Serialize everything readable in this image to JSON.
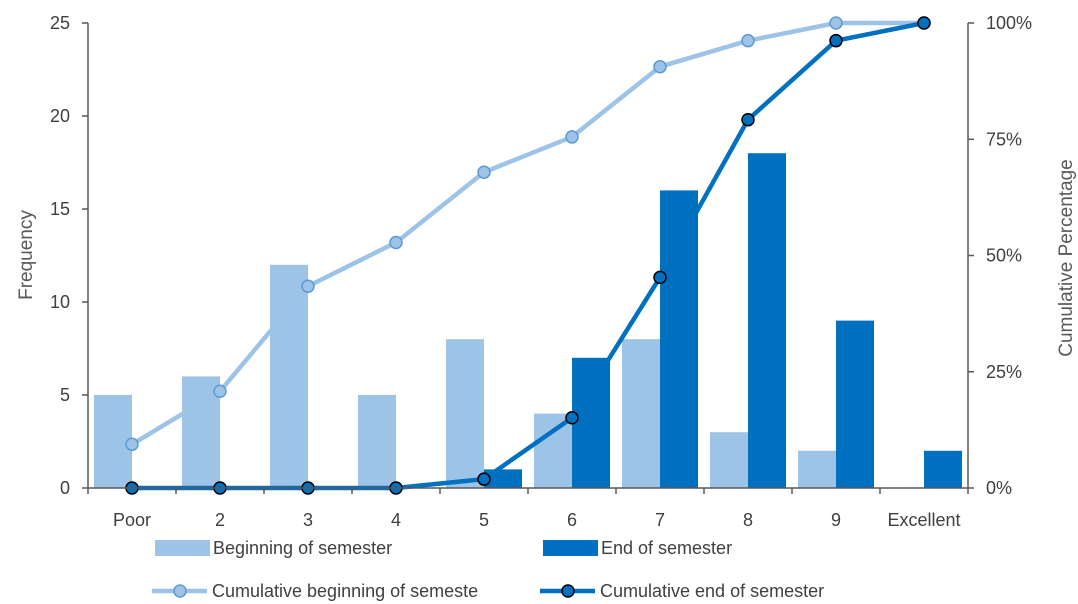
{
  "chart_data": {
    "type": "bar",
    "categories": [
      "Poor",
      "2",
      "3",
      "4",
      "5",
      "6",
      "7",
      "8",
      "9",
      "Excellent"
    ],
    "series": [
      {
        "name": "Beginning of semester",
        "type": "bar",
        "axis": "left",
        "color": "#9DC3E6",
        "values": [
          5,
          6,
          12,
          5,
          8,
          4,
          8,
          3,
          2,
          0
        ]
      },
      {
        "name": "End of semester",
        "type": "bar",
        "axis": "left",
        "color": "#0070C0",
        "values": [
          0,
          0,
          0,
          0,
          1,
          7,
          16,
          18,
          9,
          2
        ]
      },
      {
        "name": "Cumulative beginning of semeste",
        "type": "line",
        "axis": "right",
        "color": "#9DC3E6",
        "values": [
          9.4,
          20.8,
          43.4,
          52.8,
          67.9,
          75.5,
          90.6,
          96.2,
          100,
          100
        ]
      },
      {
        "name": "Cumulative end of semester",
        "type": "line",
        "axis": "right",
        "color": "#0070C0",
        "values": [
          0,
          0,
          0,
          0,
          1.9,
          15.1,
          45.3,
          79.2,
          96.2,
          100
        ]
      }
    ],
    "ylabel": "Frequency",
    "y2label": "Cumulative Percentage",
    "ylim": [
      0,
      25
    ],
    "y2lim": [
      0,
      100
    ],
    "yticks": [
      "0",
      "5",
      "10",
      "15",
      "20",
      "25"
    ],
    "y2ticks": [
      "0%",
      "25%",
      "50%",
      "75%",
      "100%"
    ],
    "grid": false,
    "legend_position": "bottom"
  }
}
